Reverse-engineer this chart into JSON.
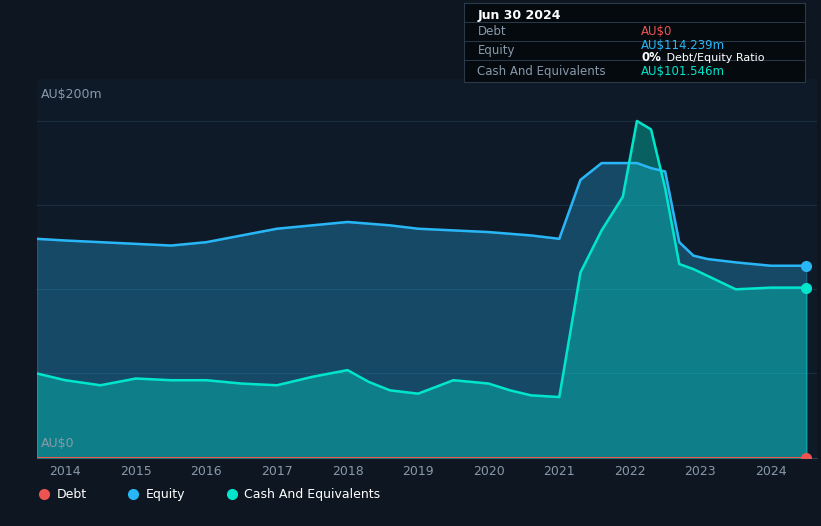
{
  "bg_color": "#0e1621",
  "plot_bg_color": "#0e1a27",
  "ylabel_200": "AU$200m",
  "ylabel_0": "AU$0",
  "equity_color": "#29b6f6",
  "cash_color": "#00e5cc",
  "debt_color": "#ef5350",
  "grid_color": "#1a3040",
  "years": [
    2013.6,
    2014.0,
    2014.5,
    2015.0,
    2015.5,
    2016.0,
    2016.5,
    2017.0,
    2017.5,
    2018.0,
    2018.3,
    2018.6,
    2019.0,
    2019.5,
    2020.0,
    2020.3,
    2020.6,
    2021.0,
    2021.3,
    2021.6,
    2021.9,
    2022.1,
    2022.3,
    2022.5,
    2022.7,
    2022.9,
    2023.1,
    2023.5,
    2024.0,
    2024.5
  ],
  "equity": [
    130,
    129,
    128,
    127,
    126,
    128,
    132,
    136,
    138,
    140,
    139,
    138,
    136,
    135,
    134,
    133,
    132,
    130,
    165,
    175,
    175,
    175,
    172,
    170,
    128,
    120,
    118,
    116,
    114,
    114
  ],
  "cash": [
    50,
    46,
    43,
    47,
    46,
    46,
    44,
    43,
    48,
    52,
    45,
    40,
    38,
    46,
    44,
    40,
    37,
    36,
    110,
    135,
    155,
    200,
    195,
    160,
    115,
    112,
    108,
    100,
    101,
    101
  ],
  "debt": [
    0,
    0,
    0,
    0,
    0,
    0,
    0,
    0,
    0,
    0,
    0,
    0,
    0,
    0,
    0,
    0,
    0,
    0,
    0,
    0,
    0,
    0,
    0,
    0,
    0,
    0,
    0,
    0,
    0,
    0
  ],
  "xlim": [
    2013.6,
    2024.65
  ],
  "ylim": [
    0,
    225
  ],
  "xticks": [
    2014,
    2015,
    2016,
    2017,
    2018,
    2019,
    2020,
    2021,
    2022,
    2023,
    2024
  ],
  "info_box": {
    "title": "Jun 30 2024",
    "debt_label": "Debt",
    "debt_value": "AU$0",
    "equity_label": "Equity",
    "equity_value": "AU$114.239m",
    "ratio_value": "0%",
    "ratio_suffix": " Debt/Equity Ratio",
    "cash_label": "Cash And Equivalents",
    "cash_value": "AU$101.546m"
  },
  "legend": [
    {
      "label": "Debt",
      "color": "#ef5350"
    },
    {
      "label": "Equity",
      "color": "#29b6f6"
    },
    {
      "label": "Cash And Equivalents",
      "color": "#00e5cc"
    }
  ]
}
